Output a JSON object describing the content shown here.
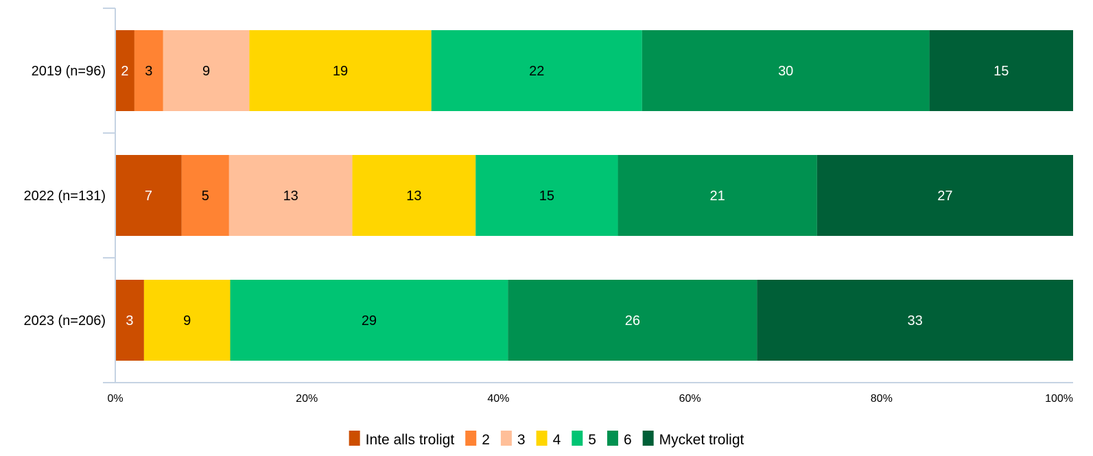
{
  "chart_data": {
    "type": "bar",
    "orientation": "horizontal",
    "stacked": true,
    "categories": [
      "2019 (n=96)",
      "2022 (n=131)",
      "2023 (n=206)"
    ],
    "series": [
      {
        "name": "Inte alls troligt",
        "color": "#cc4e00",
        "label_color": "#ffffff",
        "values": [
          2,
          7,
          3
        ]
      },
      {
        "name": "2",
        "color": "#ff8333",
        "label_color": "#000000",
        "values": [
          3,
          5,
          0
        ]
      },
      {
        "name": "3",
        "color": "#ffbf99",
        "label_color": "#000000",
        "values": [
          9,
          13,
          0
        ]
      },
      {
        "name": "4",
        "color": "#ffd600",
        "label_color": "#000000",
        "values": [
          19,
          13,
          9
        ]
      },
      {
        "name": "5",
        "color": "#00c473",
        "label_color": "#000000",
        "values": [
          22,
          15,
          29
        ]
      },
      {
        "name": "6",
        "color": "#009150",
        "label_color": "#ffffff",
        "values": [
          30,
          21,
          26
        ]
      },
      {
        "name": "Mycket troligt",
        "color": "#005f37",
        "label_color": "#ffffff",
        "values": [
          15,
          27,
          33
        ]
      }
    ],
    "x_ticks": [
      "0%",
      "20%",
      "40%",
      "60%",
      "80%",
      "100%"
    ],
    "xlim": [
      0,
      100
    ],
    "grid": false,
    "legend_position": "bottom",
    "axis_color": "#c5d3e3"
  }
}
